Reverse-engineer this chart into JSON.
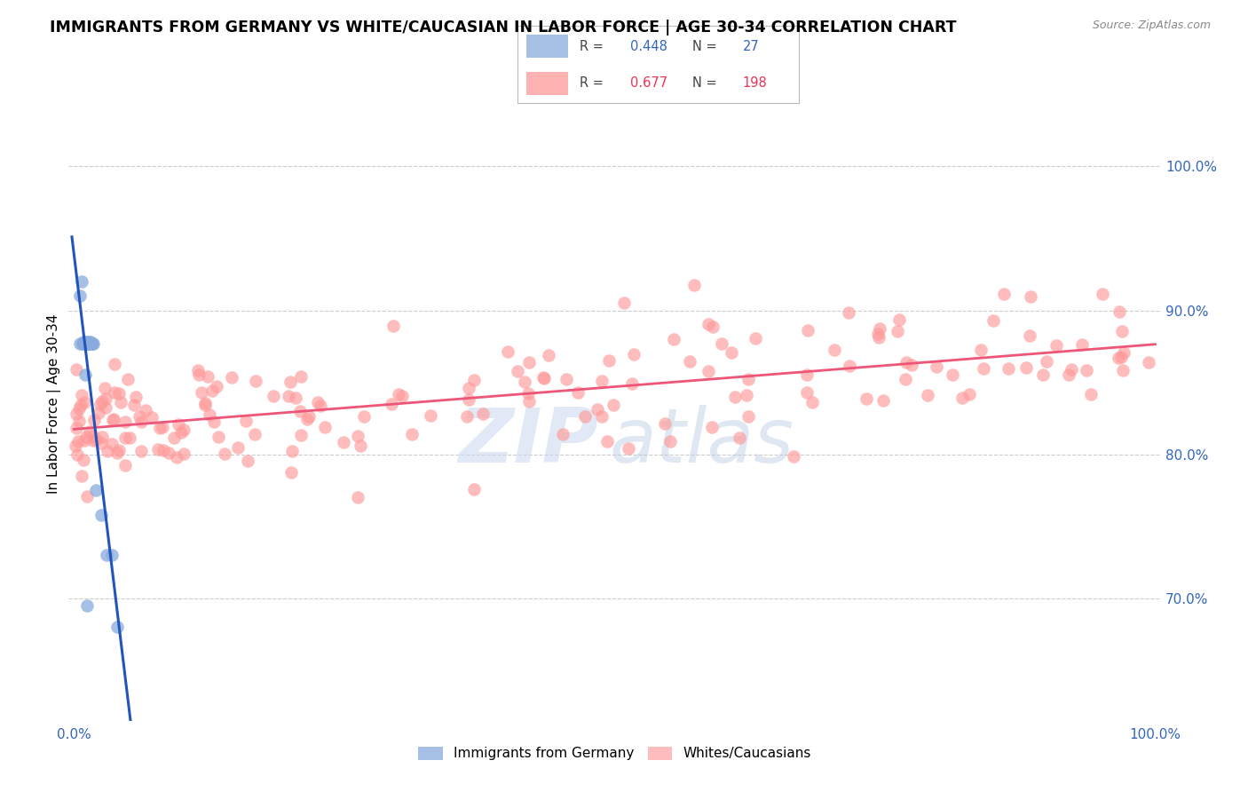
{
  "title": "IMMIGRANTS FROM GERMANY VS WHITE/CAUCASIAN IN LABOR FORCE | AGE 30-34 CORRELATION CHART",
  "source_text": "Source: ZipAtlas.com",
  "ylabel": "In Labor Force | Age 30-34",
  "blue_color": "#88AADD",
  "pink_color": "#FF9999",
  "blue_line_color": "#2255BB",
  "pink_line_color": "#EE5577",
  "legend_blue_R": "0.448",
  "legend_blue_N": "27",
  "legend_pink_R": "0.677",
  "legend_pink_N": "198",
  "ylim_low": 0.615,
  "ylim_high": 1.055,
  "xlim_low": -0.005,
  "xlim_high": 1.005,
  "ytick_vals": [
    0.7,
    0.8,
    0.9,
    1.0
  ],
  "ytick_labels": [
    "70.0%",
    "80.0%",
    "90.0%",
    "100.0%"
  ],
  "xtick_vals": [
    0.0,
    1.0
  ],
  "xtick_labels": [
    "0.0%",
    "100.0%"
  ]
}
